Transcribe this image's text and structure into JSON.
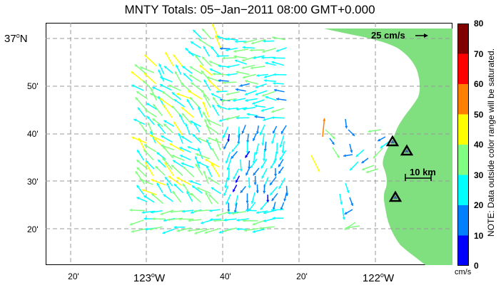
{
  "title": "MNTY Totals: 05−Jan−2011 08:00 GMT+0.000",
  "latitude_labels": [
    {
      "deg": "37",
      "sup": "o",
      "hem": "N",
      "major": true
    },
    {
      "text": "50'"
    },
    {
      "text": "40'"
    },
    {
      "text": "30'"
    },
    {
      "text": "20'"
    }
  ],
  "longitude_labels": [
    {
      "text": "20'"
    },
    {
      "deg": "123",
      "sup": "o",
      "hem": "W",
      "major": true
    },
    {
      "text": "40'"
    },
    {
      "text": "20'"
    },
    {
      "deg": "122",
      "sup": "o",
      "hem": "W",
      "major": true
    }
  ],
  "reference_vector_label": "25 cm/s",
  "scale_bar_label": "10 km",
  "colorbar": {
    "ticks": [
      "80",
      "70",
      "60",
      "50",
      "40",
      "30",
      "20",
      "10",
      "0"
    ],
    "unit": "cm/s",
    "note": "NOTE: Data outside color range will be saturated.",
    "colors": [
      "#0000ff",
      "#0080ff",
      "#00ffff",
      "#80ff80",
      "#ffff00",
      "#ff8000",
      "#ff0000",
      "#800000"
    ]
  },
  "colors": {
    "land": "#80e080",
    "grid": "#999999",
    "site_marker": "#4060a0"
  },
  "radar_sites": 3
}
